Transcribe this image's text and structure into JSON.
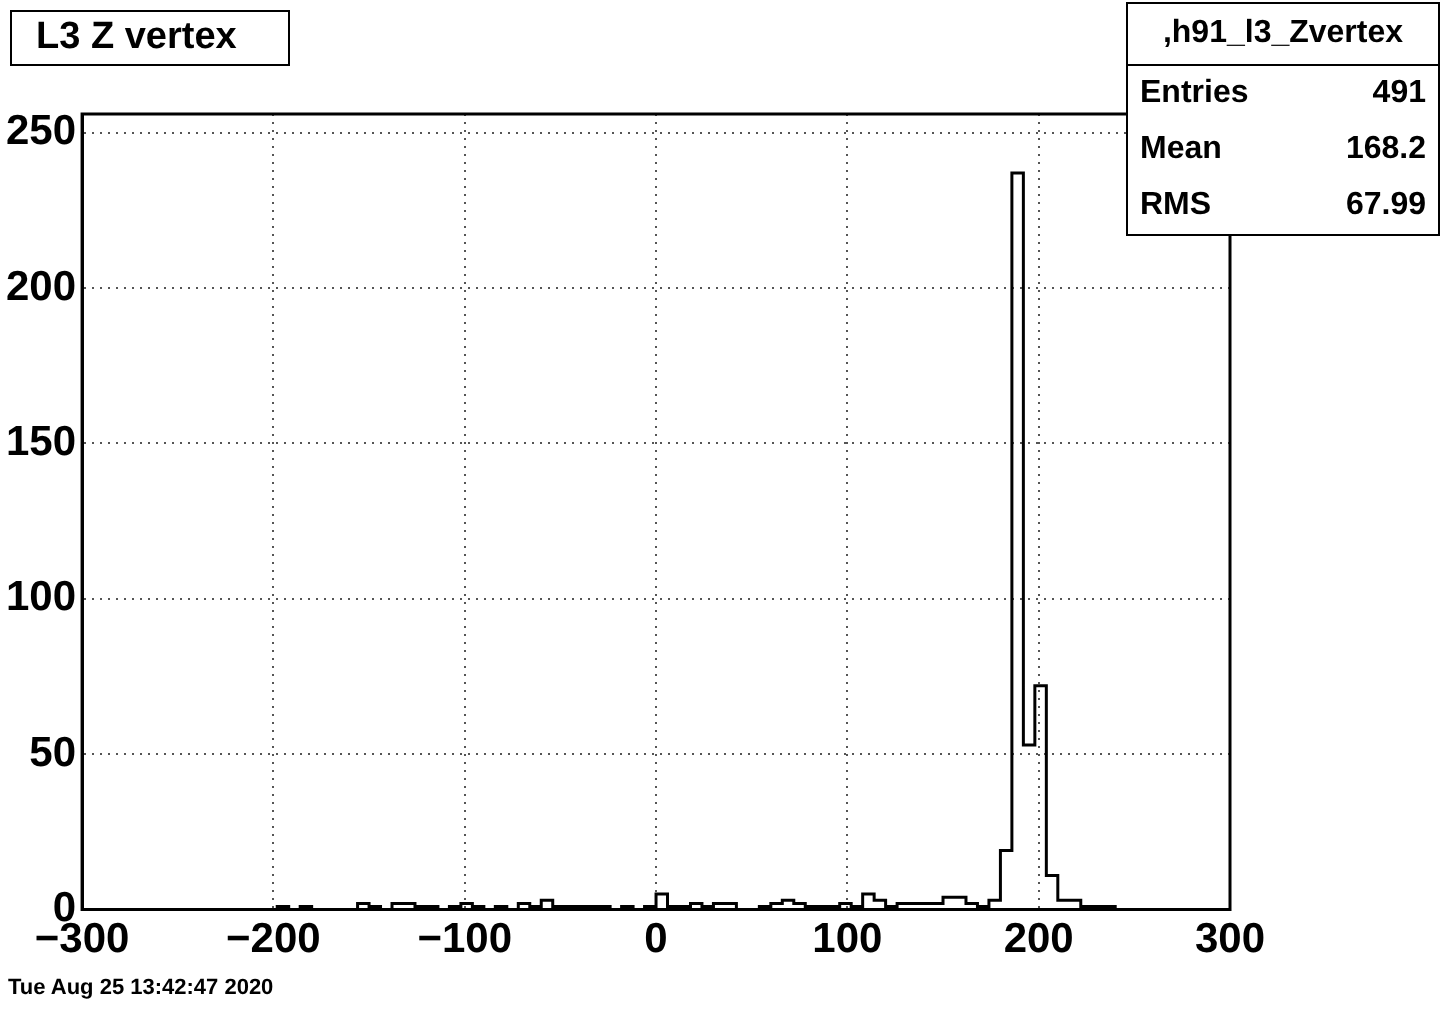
{
  "chart_data": {
    "type": "histogram",
    "title": "L3 Z vertex",
    "bins": [
      -300,
      -294,
      -288,
      -282,
      -276,
      -270,
      -264,
      -258,
      -252,
      -246,
      -240,
      -234,
      -228,
      -222,
      -216,
      -210,
      -204,
      -198,
      -192,
      -186,
      -180,
      -174,
      -168,
      -162,
      -156,
      -150,
      -144,
      -138,
      -132,
      -126,
      -120,
      -114,
      -108,
      -102,
      -96,
      -90,
      -84,
      -78,
      -72,
      -66,
      -60,
      -54,
      -48,
      -42,
      -36,
      -30,
      -24,
      -18,
      -12,
      -6,
      0,
      6,
      12,
      18,
      24,
      30,
      36,
      42,
      48,
      54,
      60,
      66,
      72,
      78,
      84,
      90,
      96,
      102,
      108,
      114,
      120,
      126,
      132,
      138,
      144,
      150,
      156,
      162,
      168,
      174,
      180,
      186,
      192,
      198,
      204,
      210,
      216,
      222,
      228,
      234,
      240,
      246,
      252,
      258,
      264,
      270,
      276,
      282,
      288,
      294,
      300
    ],
    "values": [
      0,
      0,
      0,
      0,
      0,
      0,
      0,
      0,
      0,
      0,
      0,
      0,
      0,
      0,
      0,
      0,
      0,
      1,
      0,
      1,
      0,
      0,
      0,
      0,
      2,
      1,
      0,
      2,
      2,
      1,
      1,
      0,
      1,
      2,
      1,
      0,
      1,
      0,
      2,
      1,
      3,
      1,
      1,
      1,
      1,
      1,
      0,
      1,
      0,
      1,
      5,
      1,
      1,
      2,
      1,
      2,
      2,
      0,
      0,
      1,
      2,
      3,
      2,
      1,
      1,
      1,
      2,
      1,
      5,
      3,
      1,
      2,
      2,
      2,
      2,
      4,
      4,
      2,
      1,
      3,
      19,
      237,
      53,
      72,
      11,
      3,
      3,
      1,
      1,
      1,
      0,
      0,
      0,
      0,
      0,
      0,
      0,
      0,
      0,
      0
    ],
    "color": "#000000",
    "xlim": [
      -300,
      300
    ],
    "xticks": [
      -300,
      -200,
      -100,
      0,
      100,
      200,
      300
    ],
    "ylim": [
      0,
      256
    ],
    "yticks": [
      0,
      50,
      100,
      150,
      200,
      250
    ],
    "grid": true,
    "legend": false,
    "annotations": [
      ",h91_l3_Zvertex",
      "Entries",
      "491",
      "Mean",
      "168.2",
      "RMS",
      "67.99",
      "Tue Aug 25 13:42:47 2020"
    ]
  }
}
